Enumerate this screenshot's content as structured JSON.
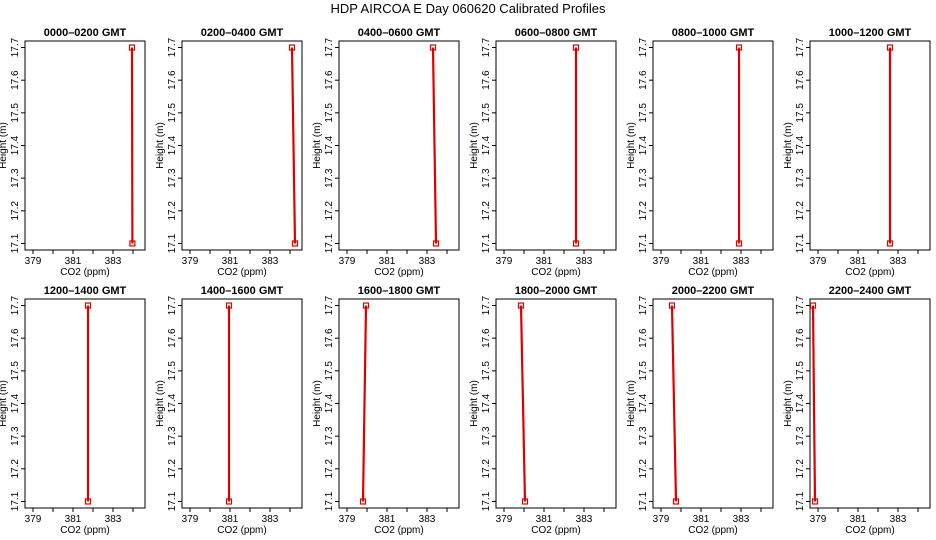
{
  "figure": {
    "title": "HDP  AIRCOA E  Day 060620  Calibrated Profiles"
  },
  "chart_data": [
    {
      "type": "line",
      "title": "0000–0200 GMT",
      "xlabel": "CO2 (ppm)",
      "ylabel": "Height (m)",
      "xlim": [
        378.6,
        384.6
      ],
      "ylim": [
        17.08,
        17.72
      ],
      "xticks": [
        "379",
        "381",
        "383"
      ],
      "yticks": [
        "17.1",
        "17.2",
        "17.3",
        "17.4",
        "17.5",
        "17.6",
        "17.7"
      ],
      "points": [
        {
          "x": 383.95,
          "y": 17.7
        },
        {
          "x": 383.97,
          "y": 17.1
        }
      ]
    },
    {
      "type": "line",
      "title": "0200–0400 GMT",
      "xlabel": "CO2 (ppm)",
      "ylabel": "Height (m)",
      "xlim": [
        378.6,
        384.6
      ],
      "ylim": [
        17.08,
        17.72
      ],
      "xticks": [
        "379",
        "381",
        "383"
      ],
      "yticks": [
        "17.1",
        "17.2",
        "17.3",
        "17.4",
        "17.5",
        "17.6",
        "17.7"
      ],
      "points": [
        {
          "x": 384.1,
          "y": 17.7
        },
        {
          "x": 384.25,
          "y": 17.1
        }
      ]
    },
    {
      "type": "line",
      "title": "0400–0600 GMT",
      "xlabel": "CO2 (ppm)",
      "ylabel": "Height (m)",
      "xlim": [
        378.6,
        384.6
      ],
      "ylim": [
        17.08,
        17.72
      ],
      "xticks": [
        "379",
        "381",
        "383"
      ],
      "yticks": [
        "17.1",
        "17.2",
        "17.3",
        "17.4",
        "17.5",
        "17.6",
        "17.7"
      ],
      "points": [
        {
          "x": 383.3,
          "y": 17.7
        },
        {
          "x": 383.45,
          "y": 17.1
        }
      ]
    },
    {
      "type": "line",
      "title": "0600–0800 GMT",
      "xlabel": "CO2 (ppm)",
      "ylabel": "Height (m)",
      "xlim": [
        378.6,
        384.6
      ],
      "ylim": [
        17.08,
        17.72
      ],
      "xticks": [
        "379",
        "381",
        "383"
      ],
      "yticks": [
        "17.1",
        "17.2",
        "17.3",
        "17.4",
        "17.5",
        "17.6",
        "17.7"
      ],
      "points": [
        {
          "x": 382.6,
          "y": 17.7
        },
        {
          "x": 382.6,
          "y": 17.1
        }
      ]
    },
    {
      "type": "line",
      "title": "0800–1000 GMT",
      "xlabel": "CO2 (ppm)",
      "ylabel": "Height (m)",
      "xlim": [
        378.6,
        384.6
      ],
      "ylim": [
        17.08,
        17.72
      ],
      "xticks": [
        "379",
        "381",
        "383"
      ],
      "yticks": [
        "17.1",
        "17.2",
        "17.3",
        "17.4",
        "17.5",
        "17.6",
        "17.7"
      ],
      "points": [
        {
          "x": 382.9,
          "y": 17.7
        },
        {
          "x": 382.9,
          "y": 17.1
        }
      ]
    },
    {
      "type": "line",
      "title": "1000–1200 GMT",
      "xlabel": "CO2 (ppm)",
      "ylabel": "Height (m)",
      "xlim": [
        378.6,
        384.6
      ],
      "ylim": [
        17.08,
        17.72
      ],
      "xticks": [
        "379",
        "381",
        "383"
      ],
      "yticks": [
        "17.1",
        "17.2",
        "17.3",
        "17.4",
        "17.5",
        "17.6",
        "17.7"
      ],
      "points": [
        {
          "x": 382.6,
          "y": 17.7
        },
        {
          "x": 382.6,
          "y": 17.1
        }
      ]
    },
    {
      "type": "line",
      "title": "1200–1400 GMT",
      "xlabel": "CO2 (ppm)",
      "ylabel": "Height (m)",
      "xlim": [
        378.6,
        384.6
      ],
      "ylim": [
        17.08,
        17.72
      ],
      "xticks": [
        "379",
        "381",
        "383"
      ],
      "yticks": [
        "17.1",
        "17.2",
        "17.3",
        "17.4",
        "17.5",
        "17.6",
        "17.7"
      ],
      "points": [
        {
          "x": 381.75,
          "y": 17.7
        },
        {
          "x": 381.75,
          "y": 17.1
        }
      ]
    },
    {
      "type": "line",
      "title": "1400–1600 GMT",
      "xlabel": "CO2 (ppm)",
      "ylabel": "Height (m)",
      "xlim": [
        378.6,
        384.6
      ],
      "ylim": [
        17.08,
        17.72
      ],
      "xticks": [
        "379",
        "381",
        "383"
      ],
      "yticks": [
        "17.1",
        "17.2",
        "17.3",
        "17.4",
        "17.5",
        "17.6",
        "17.7"
      ],
      "points": [
        {
          "x": 380.95,
          "y": 17.7
        },
        {
          "x": 380.95,
          "y": 17.1
        }
      ]
    },
    {
      "type": "line",
      "title": "1600–1800 GMT",
      "xlabel": "CO2 (ppm)",
      "ylabel": "Height (m)",
      "xlim": [
        378.6,
        384.6
      ],
      "ylim": [
        17.08,
        17.72
      ],
      "xticks": [
        "379",
        "381",
        "383"
      ],
      "yticks": [
        "17.1",
        "17.2",
        "17.3",
        "17.4",
        "17.5",
        "17.6",
        "17.7"
      ],
      "points": [
        {
          "x": 379.95,
          "y": 17.7
        },
        {
          "x": 379.8,
          "y": 17.1
        }
      ]
    },
    {
      "type": "line",
      "title": "1800–2000 GMT",
      "xlabel": "CO2 (ppm)",
      "ylabel": "Height (m)",
      "xlim": [
        378.6,
        384.6
      ],
      "ylim": [
        17.08,
        17.72
      ],
      "xticks": [
        "379",
        "381",
        "383"
      ],
      "yticks": [
        "17.1",
        "17.2",
        "17.3",
        "17.4",
        "17.5",
        "17.6",
        "17.7"
      ],
      "points": [
        {
          "x": 379.85,
          "y": 17.7
        },
        {
          "x": 380.05,
          "y": 17.1
        }
      ]
    },
    {
      "type": "line",
      "title": "2000–2200 GMT",
      "xlabel": "CO2 (ppm)",
      "ylabel": "Height (m)",
      "xlim": [
        378.6,
        384.6
      ],
      "ylim": [
        17.08,
        17.72
      ],
      "xticks": [
        "379",
        "381",
        "383"
      ],
      "yticks": [
        "17.1",
        "17.2",
        "17.3",
        "17.4",
        "17.5",
        "17.6",
        "17.7"
      ],
      "points": [
        {
          "x": 379.55,
          "y": 17.7
        },
        {
          "x": 379.75,
          "y": 17.1
        }
      ]
    },
    {
      "type": "line",
      "title": "2200–2400 GMT",
      "xlabel": "CO2 (ppm)",
      "ylabel": "Height (m)",
      "xlim": [
        378.6,
        384.6
      ],
      "ylim": [
        17.08,
        17.72
      ],
      "xticks": [
        "379",
        "381",
        "383"
      ],
      "yticks": [
        "17.1",
        "17.2",
        "17.3",
        "17.4",
        "17.5",
        "17.6",
        "17.7"
      ],
      "points": [
        {
          "x": 378.75,
          "y": 17.7
        },
        {
          "x": 378.85,
          "y": 17.1
        }
      ]
    }
  ],
  "colors": {
    "profile": "#dd0000",
    "axis": "#000000"
  }
}
